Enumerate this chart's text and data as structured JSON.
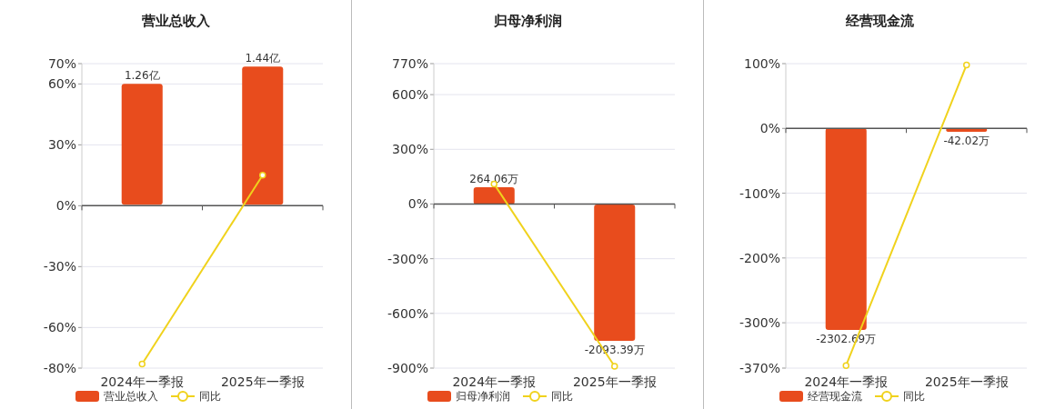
{
  "chart_data": [
    {
      "type": "bar",
      "title": "营业总收入",
      "categories": [
        "2024年一季报",
        "2025年一季报"
      ],
      "ylim": [
        -80,
        70
      ],
      "yticks": [
        {
          "value": -80,
          "label": "-80%"
        },
        {
          "value": -60,
          "label": "-60%"
        },
        {
          "value": -30,
          "label": "-30%"
        },
        {
          "value": 0,
          "label": "0%"
        },
        {
          "value": 30,
          "label": "30%"
        },
        {
          "value": 60,
          "label": "60%"
        },
        {
          "value": 70,
          "label": "70%"
        }
      ],
      "y2lim": [
        -1.7,
        1.47
      ],
      "grid": "y",
      "legend": "bottom",
      "marker": "circle",
      "series": [
        {
          "name": "营业总收入",
          "color": "#e84c1d",
          "axis": "y2",
          "values": [
            1.26,
            1.44
          ],
          "value_labels": [
            "1.26亿",
            "1.44亿"
          ]
        },
        {
          "name": "同比",
          "type": "line",
          "color": "#f0d21c",
          "values": [
            -78,
            15
          ]
        }
      ]
    },
    {
      "type": "bar",
      "title": "归母净利润",
      "categories": [
        "2024年一季报",
        "2025年一季报"
      ],
      "ylim": [
        -900,
        770
      ],
      "yticks": [
        {
          "value": -900,
          "label": "-900%"
        },
        {
          "value": -600,
          "label": "-600%"
        },
        {
          "value": -300,
          "label": "-300%"
        },
        {
          "value": 0,
          "label": "0%"
        },
        {
          "value": 300,
          "label": "300%"
        },
        {
          "value": 600,
          "label": "600%"
        },
        {
          "value": 770,
          "label": "770%"
        }
      ],
      "y2lim": [
        -2512,
        2163
      ],
      "grid": "y",
      "legend": "bottom",
      "marker": "circle",
      "series": [
        {
          "name": "归母净利润",
          "color": "#e84c1d",
          "axis": "y2",
          "values": [
            264.06,
            -2093.39
          ],
          "value_labels": [
            "264.06万",
            "-2093.39万"
          ]
        },
        {
          "name": "同比",
          "type": "line",
          "color": "#f0d21c",
          "values": [
            110,
            -890
          ]
        }
      ]
    },
    {
      "type": "bar",
      "title": "经营现金流",
      "categories": [
        "2024年一季报",
        "2025年一季报"
      ],
      "ylim": [
        -370,
        100
      ],
      "yticks": [
        {
          "value": -370,
          "label": "-370%"
        },
        {
          "value": -300,
          "label": "-300%"
        },
        {
          "value": -200,
          "label": "-200%"
        },
        {
          "value": -100,
          "label": "-100%"
        },
        {
          "value": 0,
          "label": "0%"
        },
        {
          "value": 100,
          "label": "100%"
        }
      ],
      "y2lim": [
        -2738,
        736
      ],
      "grid": "y",
      "legend": "bottom",
      "marker": "circle",
      "series": [
        {
          "name": "经营现金流",
          "color": "#e84c1d",
          "axis": "y2",
          "values": [
            -2302.69,
            -42.02
          ],
          "value_labels": [
            "-2302.69万",
            "-42.02万"
          ]
        },
        {
          "name": "同比",
          "type": "line",
          "color": "#f0d21c",
          "values": [
            -366,
            98
          ]
        }
      ]
    }
  ]
}
